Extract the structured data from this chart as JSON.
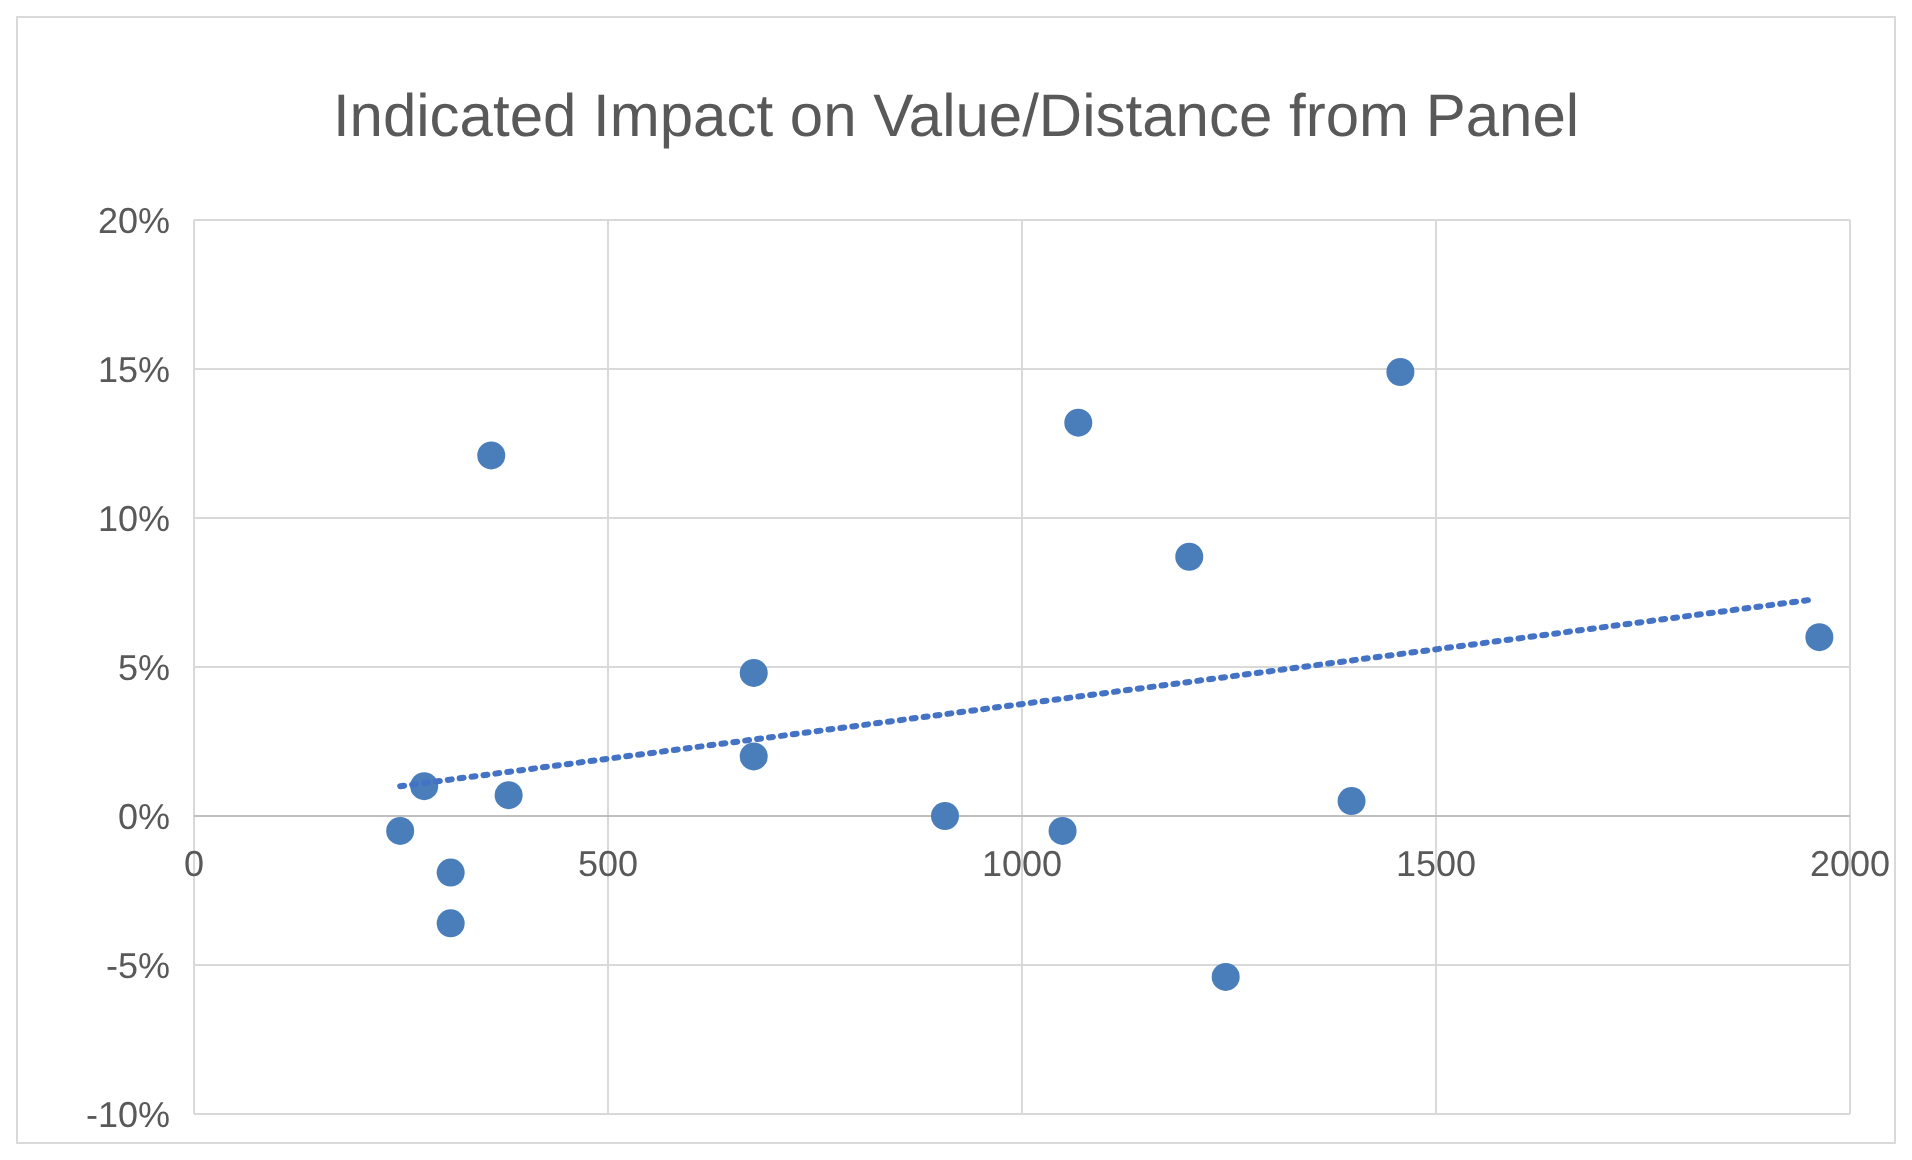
{
  "chart_data": {
    "type": "scatter",
    "title": "Indicated Impact on Value/Distance from Panel",
    "xlim": [
      0,
      2000
    ],
    "xticks": [
      0,
      500,
      1000,
      1500,
      2000
    ],
    "ylim": [
      -10,
      20
    ],
    "yticks": [
      {
        "value": -10,
        "label": "-10%"
      },
      {
        "value": -5,
        "label": "-5%"
      },
      {
        "value": 0,
        "label": "0%"
      },
      {
        "value": 5,
        "label": "5%"
      },
      {
        "value": 10,
        "label": "10%"
      },
      {
        "value": 15,
        "label": "15%"
      },
      {
        "value": 20,
        "label": "20%"
      }
    ],
    "grid": true,
    "series": [
      {
        "color": "#4a7ebb",
        "marker": "circle",
        "x": [
          249,
          278,
          310,
          310,
          359,
          380,
          676,
          676,
          907,
          1049,
          1068,
          1202,
          1246,
          1398,
          1457,
          1963
        ],
        "values": [
          -0.5,
          1,
          -1.9,
          -3.6,
          12.1,
          0.7,
          4.8,
          2,
          0,
          -0.5,
          13.2,
          8.7,
          -5.4,
          0.5,
          14.9,
          6
        ]
      },
      {
        "type": "line",
        "color": "#4472c4",
        "line_style": "dotted",
        "marker": "none",
        "x": [
          249,
          1951
        ],
        "values": [
          1,
          7.25
        ]
      }
    ]
  }
}
